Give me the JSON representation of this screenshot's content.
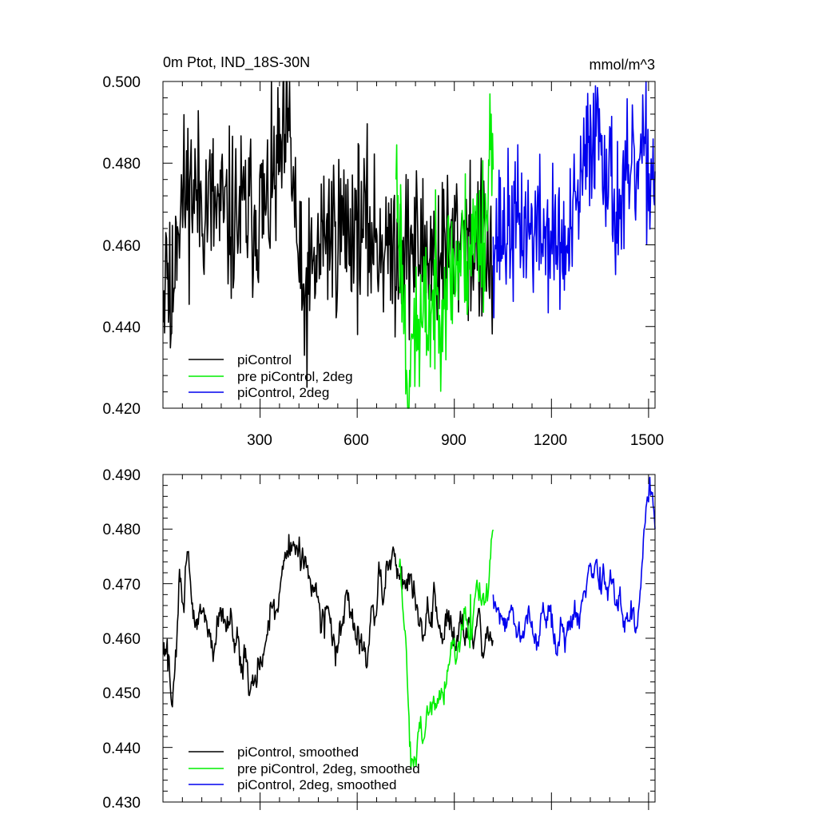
{
  "figure": {
    "background": "#ffffff"
  },
  "chart_data": [
    {
      "type": "line",
      "title": "0m Ptot, IND_18S-30N",
      "unit_label": "mmol/m^3",
      "xlabel": "",
      "ylabel": "",
      "xlim": [
        0,
        1520
      ],
      "ylim": [
        0.42,
        0.5
      ],
      "yticks": [
        "0.500",
        "0.480",
        "0.460",
        "0.440",
        "0.420"
      ],
      "xticks": [
        "300",
        "600",
        "900",
        "1200",
        "1500"
      ],
      "grid": false,
      "legend_position": "bottom-left",
      "series": [
        {
          "name": "piControl",
          "color": "#000000",
          "x_start": 1,
          "x_end": 1020,
          "mean": 0.4645,
          "amplitude": 0.013,
          "seed": 11,
          "anchors": [
            [
              1,
              0.441
            ],
            [
              10,
              0.463
            ],
            [
              25,
              0.438
            ],
            [
              40,
              0.467
            ],
            [
              80,
              0.474
            ],
            [
              200,
              0.466
            ],
            [
              320,
              0.469
            ],
            [
              390,
              0.488
            ],
            [
              430,
              0.444
            ],
            [
              500,
              0.463
            ],
            [
              600,
              0.465
            ],
            [
              700,
              0.46
            ],
            [
              760,
              0.46
            ],
            [
              860,
              0.458
            ],
            [
              930,
              0.463
            ],
            [
              1020,
              0.455
            ]
          ]
        },
        {
          "name": "pre piControl, 2deg",
          "color": "#00ee00",
          "x_start": 720,
          "x_end": 1020,
          "mean": 0.452,
          "amplitude": 0.012,
          "seed": 23,
          "anchors": [
            [
              720,
              0.476
            ],
            [
              740,
              0.455
            ],
            [
              755,
              0.426
            ],
            [
              770,
              0.438
            ],
            [
              800,
              0.44
            ],
            [
              850,
              0.448
            ],
            [
              900,
              0.455
            ],
            [
              950,
              0.46
            ],
            [
              1000,
              0.466
            ],
            [
              1015,
              0.492
            ]
          ]
        },
        {
          "name": "piControl, 2deg",
          "color": "#0000ee",
          "x_start": 1020,
          "x_end": 1520,
          "mean": 0.467,
          "amplitude": 0.011,
          "seed": 37,
          "anchors": [
            [
              1020,
              0.462
            ],
            [
              1100,
              0.465
            ],
            [
              1200,
              0.462
            ],
            [
              1250,
              0.458
            ],
            [
              1340,
              0.493
            ],
            [
              1400,
              0.468
            ],
            [
              1480,
              0.48
            ],
            [
              1520,
              0.478
            ]
          ]
        }
      ]
    },
    {
      "type": "line",
      "title": "",
      "xlabel": "",
      "ylabel": "",
      "xlim": [
        0,
        1520
      ],
      "ylim": [
        0.43,
        0.49
      ],
      "yticks": [
        "0.490",
        "0.480",
        "0.470",
        "0.460",
        "0.450",
        "0.440",
        "0.430"
      ],
      "grid": false,
      "legend_position": "bottom-left",
      "series": [
        {
          "name": "piControl, smoothed",
          "color": "#000000",
          "x_start": 1,
          "x_end": 1020,
          "mean": 0.4645,
          "amplitude": 0.006,
          "seed": 51,
          "anchors": [
            [
              1,
              0.457
            ],
            [
              15,
              0.454
            ],
            [
              25,
              0.449
            ],
            [
              50,
              0.47
            ],
            [
              70,
              0.473
            ],
            [
              100,
              0.462
            ],
            [
              200,
              0.464
            ],
            [
              290,
              0.451
            ],
            [
              390,
              0.479
            ],
            [
              500,
              0.46
            ],
            [
              640,
              0.462
            ],
            [
              710,
              0.476
            ],
            [
              800,
              0.463
            ],
            [
              900,
              0.462
            ],
            [
              1000,
              0.46
            ]
          ]
        },
        {
          "name": "pre piControl, 2deg, smoothed",
          "color": "#00ee00",
          "x_start": 730,
          "x_end": 1020,
          "mean": 0.452,
          "amplitude": 0.005,
          "seed": 63,
          "anchors": [
            [
              730,
              0.473
            ],
            [
              750,
              0.46
            ],
            [
              765,
              0.441
            ],
            [
              790,
              0.443
            ],
            [
              830,
              0.446
            ],
            [
              870,
              0.452
            ],
            [
              900,
              0.46
            ],
            [
              950,
              0.468
            ],
            [
              1000,
              0.47
            ],
            [
              1015,
              0.478
            ]
          ]
        },
        {
          "name": "piControl, 2deg, smoothed",
          "color": "#0000ee",
          "x_start": 1020,
          "x_end": 1520,
          "mean": 0.467,
          "amplitude": 0.005,
          "seed": 79,
          "anchors": [
            [
              1020,
              0.468
            ],
            [
              1100,
              0.463
            ],
            [
              1200,
              0.462
            ],
            [
              1250,
              0.463
            ],
            [
              1350,
              0.473
            ],
            [
              1400,
              0.466
            ],
            [
              1460,
              0.461
            ],
            [
              1500,
              0.485
            ],
            [
              1520,
              0.48
            ]
          ]
        }
      ]
    }
  ]
}
